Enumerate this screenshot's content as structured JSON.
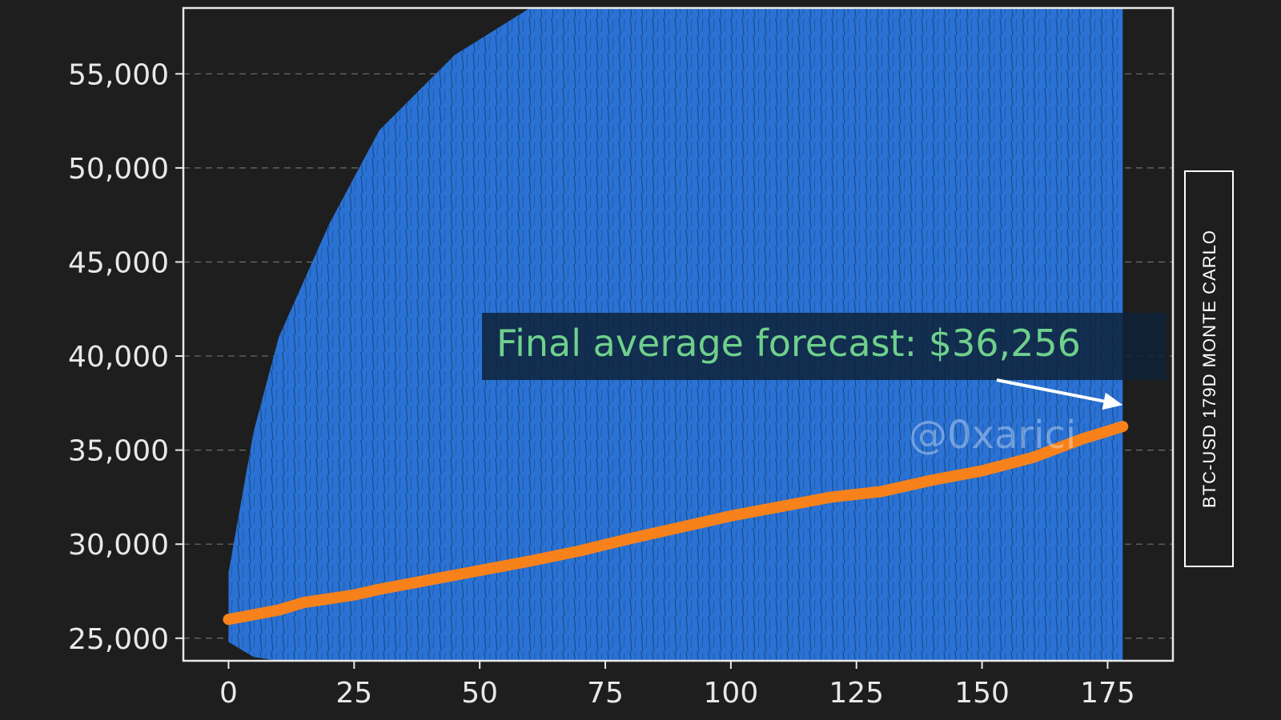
{
  "chart_data": {
    "type": "line",
    "title": "BTC-USD 179D MONTE CARLO",
    "xlabel": "",
    "ylabel": "",
    "xlim": [
      -9,
      188
    ],
    "ylim": [
      23800,
      58500
    ],
    "x_ticks": [
      0,
      25,
      50,
      75,
      100,
      125,
      150,
      175
    ],
    "x_tick_labels": [
      "0",
      "25",
      "50",
      "75",
      "100",
      "125",
      "150",
      "175"
    ],
    "y_ticks": [
      25000,
      30000,
      35000,
      40000,
      45000,
      50000,
      55000
    ],
    "y_tick_labels": [
      "25,000",
      "30,000",
      "35,000",
      "40,000",
      "45,000",
      "50,000",
      "55,000"
    ],
    "grid": "horizontal-dashed",
    "series": [
      {
        "name": "",
        "color": "#f7821b",
        "x": [
          0,
          10,
          15,
          20,
          25,
          30,
          40,
          50,
          60,
          70,
          80,
          90,
          100,
          110,
          120,
          130,
          140,
          150,
          160,
          170,
          178
        ],
        "values": [
          26000,
          26500,
          26900,
          27100,
          27300,
          27600,
          28100,
          28600,
          29100,
          29650,
          30300,
          30900,
          31500,
          32000,
          32500,
          32800,
          33400,
          33900,
          34600,
          35600,
          36256
        ]
      }
    ],
    "simulation_band": {
      "color": "#2a72d4",
      "x": [
        0,
        5,
        10,
        20,
        30,
        45,
        60,
        75,
        178
      ],
      "lower": [
        24800,
        24000,
        23800,
        23800,
        23800,
        23800,
        23800,
        23800,
        23800
      ],
      "upper": [
        28500,
        36000,
        41000,
        47000,
        52000,
        56000,
        58500,
        58500,
        58500
      ]
    },
    "annotation": {
      "text": "Final average forecast: $36,256",
      "text_color": "#6fd08c",
      "point": {
        "x": 178,
        "y": 37400
      }
    },
    "watermark": "@0xarici"
  }
}
